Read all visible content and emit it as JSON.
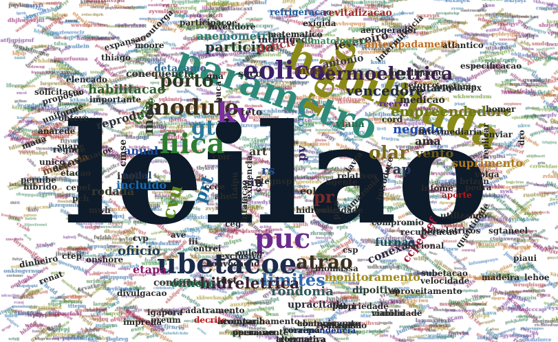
{
  "cloud": {
    "words": [
      {
        "text": "leilao",
        "color": "#0d1b2a"
      },
      {
        "text": "habilitada",
        "color": "#8a8a1a"
      },
      {
        "text": "parametro",
        "color": "#2e8b7a"
      },
      {
        "text": "revo",
        "color": "#8c8a1c"
      },
      {
        "text": "ubetacoe",
        "color": "#1c2b4a"
      },
      {
        "text": "puc",
        "color": "#6a2b8c"
      },
      {
        "text": "termoeletrica",
        "color": "#3a1f4a"
      },
      {
        "text": "fiica",
        "color": "#2e7d32"
      },
      {
        "text": "modulo",
        "color": "#3a2f1a"
      },
      {
        "text": "eolico",
        "color": "#3c1f6a"
      },
      {
        "text": "porto",
        "color": "#2b3a1f"
      },
      {
        "text": "kv",
        "color": "#7b2fa0"
      },
      {
        "text": "gt",
        "color": "#2a7a9a"
      },
      {
        "text": "limites",
        "color": "#2a6ab0"
      },
      {
        "text": "atrao",
        "color": "#3a3020"
      },
      {
        "text": "vencedore",
        "color": "#1f2a3c"
      },
      {
        "text": "olar",
        "color": "#7a6a1a"
      },
      {
        "text": "habilitacao",
        "color": "#2f5f2f"
      },
      {
        "text": "mon",
        "color": "#2f3a2a"
      },
      {
        "text": "cvu",
        "color": "#5a8a1a"
      },
      {
        "text": "pr",
        "color": "#7a2a2a"
      },
      {
        "text": "rs",
        "color": "#2a4a8a"
      },
      {
        "text": "hidreletrica",
        "color": "#3a2030"
      },
      {
        "text": "monitoramento",
        "color": "#a08a1a"
      },
      {
        "text": "rondonia",
        "color": "#2a5a5a"
      },
      {
        "text": "conexao",
        "color": "#2a2a3a"
      },
      {
        "text": "participa",
        "color": "#1f3a3a"
      },
      {
        "text": "anemometrica",
        "color": "#2a7a7a"
      },
      {
        "text": "monte",
        "color": "#5a3a2a"
      },
      {
        "text": "empreendedore",
        "color": "#6a7a1a"
      },
      {
        "text": "reproduzir",
        "color": "#2a2f3a"
      },
      {
        "text": "rap",
        "color": "#2a3a5a"
      },
      {
        "text": "negado",
        "color": "#1a4ab0"
      },
      {
        "text": "prt",
        "color": "#1a6a9a"
      },
      {
        "text": "ama",
        "color": "#2a2a2a"
      },
      {
        "text": "vento",
        "color": "#6a5a1a"
      },
      {
        "text": "suprimento",
        "color": "#b07a1a"
      },
      {
        "text": "fevereiro",
        "color": "#3a2a2a"
      },
      {
        "text": "unitario",
        "color": "#2a2a2a"
      },
      {
        "text": "antonio",
        "color": "#3a3a3a"
      },
      {
        "text": "deficit",
        "color": "#b03a3a"
      },
      {
        "text": "conequencia",
        "color": "#2a3a2a"
      },
      {
        "text": "detacamo",
        "color": "#2a6a8a"
      },
      {
        "text": "interligado",
        "color": "#2a2a3a"
      },
      {
        "text": "climatologico",
        "color": "#3a8a5a"
      },
      {
        "text": "refrigeracao",
        "color": "#1a5a9a"
      },
      {
        "text": "revitalizacao",
        "color": "#a02a2a"
      },
      {
        "text": "antecipadamente",
        "color": "#c06a1a"
      },
      {
        "text": "ofiicio",
        "color": "#1a3a5a"
      },
      {
        "text": "etapa",
        "color": "#8a1a6a"
      },
      {
        "text": "offhore",
        "color": "#1a6a4a"
      },
      {
        "text": "confiante",
        "color": "#3a3a3a"
      },
      {
        "text": "tust",
        "color": "#2a2a2a"
      },
      {
        "text": "upracitado",
        "color": "#2a2a3a"
      },
      {
        "text": "dipoitivo",
        "color": "#2a3a2a"
      },
      {
        "text": "furnas",
        "color": "#1a4a6a"
      },
      {
        "text": "ccpectef",
        "color": "#a01a3a"
      },
      {
        "text": "anual",
        "color": "#1a4aa0"
      },
      {
        "text": "nodal",
        "color": "#1a3a6a"
      },
      {
        "text": "incluido",
        "color": "#1a6ab0"
      },
      {
        "text": "rodada",
        "color": "#3a3a2a"
      },
      {
        "text": "memoria",
        "color": "#6a4a2a"
      },
      {
        "text": "cmse",
        "color": "#2a2a2a"
      },
      {
        "text": "ingle",
        "color": "#2a2a2a"
      },
      {
        "text": "sin",
        "color": "#3a2a6a"
      },
      {
        "text": "art",
        "color": "#3a3a2a"
      },
      {
        "text": "eol",
        "color": "#2a2a2a"
      },
      {
        "text": "pv",
        "color": "#3a2a6a"
      },
      {
        "text": "cmo",
        "color": "#2a8aa0"
      },
      {
        "text": "viana",
        "color": "#2a6a4a"
      },
      {
        "text": "reerva",
        "color": "#6a2a8a"
      },
      {
        "text": "medicao",
        "color": "#2a2a2a"
      },
      {
        "text": "pdeapx",
        "color": "#2a2a2a"
      },
      {
        "text": "homer",
        "color": "#2a2a2a"
      },
      {
        "text": "enviar",
        "color": "#2a2a2a"
      },
      {
        "text": "teto",
        "color": "#3a2a2a"
      },
      {
        "text": "seco",
        "color": "#2a2a2a"
      },
      {
        "text": "torre",
        "color": "#3a7a3a"
      },
      {
        "text": "mmbtu",
        "color": "#5a5a5a"
      },
      {
        "text": "propriedade",
        "color": "#2a2a2a"
      },
      {
        "text": "comprovacao",
        "color": "#2a2a2a"
      },
      {
        "text": "inventario",
        "color": "#2a2a2a"
      },
      {
        "text": "correpondencia",
        "color": "#1a3a8a"
      },
      {
        "text": "paraguai",
        "color": "#2a2a2a"
      },
      {
        "text": "permanente",
        "color": "#2a2a2a"
      },
      {
        "text": "tronqueira",
        "color": "#2a2a3a"
      },
      {
        "text": "decrito",
        "color": "#c01a1a"
      },
      {
        "text": "igapora",
        "color": "#2a2a2a"
      },
      {
        "text": "cadatramento",
        "color": "#2a2a2a"
      },
      {
        "text": "preum",
        "color": "#2a2a2a"
      },
      {
        "text": "imprena",
        "color": "#2a2a2a"
      },
      {
        "text": "divulgacao",
        "color": "#2a2a2a"
      },
      {
        "text": "subetacao",
        "color": "#2a2a2a"
      },
      {
        "text": "madeira",
        "color": "#2a2a2a"
      },
      {
        "text": "velocidade",
        "color": "#2a2a2a"
      },
      {
        "text": "quantidade",
        "color": "#2a2a2a"
      },
      {
        "text": "nacional",
        "color": "#2a2a2a"
      },
      {
        "text": "aproveitamento",
        "color": "#2a2a2a"
      },
      {
        "text": "recuperacao",
        "color": "#2a2a2a"
      },
      {
        "text": "hidreletricos",
        "color": "#2a2a2a"
      },
      {
        "text": "utilizando",
        "color": "#2a2a2a"
      },
      {
        "text": "aporte",
        "color": "#b01a1a"
      },
      {
        "text": "pedra",
        "color": "#2a2a2a"
      },
      {
        "text": "brizon",
        "color": "#2a2a2a"
      },
      {
        "text": "volga",
        "color": "#2a2a2a"
      },
      {
        "text": "infome",
        "color": "#2a2a2a"
      },
      {
        "text": "replicar",
        "color": "#2a2a2a"
      },
      {
        "text": "compromio",
        "color": "#2a2a2a"
      },
      {
        "text": "introduce",
        "color": "#2a2a2a"
      },
      {
        "text": "agente",
        "color": "#2a2a2a"
      },
      {
        "text": "relativos",
        "color": "#2a2a2a"
      },
      {
        "text": "lavra",
        "color": "#2a2a2a"
      },
      {
        "text": "pne",
        "color": "#2a2a2a"
      },
      {
        "text": "pico",
        "color": "#2a2a2a"
      },
      {
        "text": "csp",
        "color": "#2a2a2a"
      },
      {
        "text": "entrei",
        "color": "#2a2a2a"
      },
      {
        "text": "exclusivo",
        "color": "#2a2a2a"
      },
      {
        "text": "oulen",
        "color": "#2a2a2a"
      },
      {
        "text": "ave",
        "color": "#2a2a2a"
      },
      {
        "text": "cvp",
        "color": "#2a2a2a"
      },
      {
        "text": "mwh",
        "color": "#2a2a2a"
      },
      {
        "text": "pch",
        "color": "#2a2a2a"
      },
      {
        "text": "cepel",
        "color": "#2a2a2a"
      },
      {
        "text": "etacao",
        "color": "#2a2a2a"
      },
      {
        "text": "unico",
        "color": "#2a2a2a"
      },
      {
        "text": "peruibe",
        "color": "#2a2a2a"
      },
      {
        "text": "hibrido",
        "color": "#2a2a2a"
      },
      {
        "text": "determinacoe",
        "color": "#2a2a2a"
      },
      {
        "text": "regime",
        "color": "#2a2a2a"
      },
      {
        "text": "anarede",
        "color": "#2a2a2a"
      },
      {
        "text": "suape",
        "color": "#2a2a2a"
      },
      {
        "text": "uniforme",
        "color": "#2a2a2a"
      },
      {
        "text": "obteve",
        "color": "#2a2a2a"
      },
      {
        "text": "proposta",
        "color": "#2a2a2a"
      },
      {
        "text": "importante",
        "color": "#2a2a2a"
      },
      {
        "text": "elencado",
        "color": "#2a2a2a"
      },
      {
        "text": "thiago",
        "color": "#2a2a2a"
      },
      {
        "text": "expansao",
        "color": "#2a2a2a"
      },
      {
        "text": "moore",
        "color": "#2a2a2a"
      },
      {
        "text": "outorga",
        "color": "#2a2a2a"
      },
      {
        "text": "participacoe",
        "color": "#2a2a2a"
      },
      {
        "text": "invetidore",
        "color": "#2a2a2a"
      },
      {
        "text": "matematico",
        "color": "#2a2a2a"
      },
      {
        "text": "exigida",
        "color": "#2a2a2a"
      },
      {
        "text": "aerogerador",
        "color": "#2a2a2a"
      },
      {
        "text": "intermitencia",
        "color": "#2a2a2a"
      },
      {
        "text": "interligacao",
        "color": "#2a2a2a"
      },
      {
        "text": "imetame",
        "color": "#2a2a2a"
      },
      {
        "text": "especificacao",
        "color": "#2a2a2a"
      },
      {
        "text": "reforco",
        "color": "#2a2a2a"
      },
      {
        "text": "intermediaria",
        "color": "#2a2a2a"
      },
      {
        "text": "intalacao",
        "color": "#2a2a2a"
      },
      {
        "text": "exigencia",
        "color": "#2a2a2a"
      },
      {
        "text": "itaipu",
        "color": "#2a2a2a"
      },
      {
        "text": "utegnsp",
        "color": "#2a2a2a"
      },
      {
        "text": "cmr",
        "color": "#2a2a2a"
      },
      {
        "text": "ccee",
        "color": "#2a2a2a"
      },
      {
        "text": "ahe",
        "color": "#2a2a2a"
      },
      {
        "text": "ceg",
        "color": "#2a2a2a"
      },
      {
        "text": "cgh",
        "color": "#2a2a2a"
      },
      {
        "text": "buca",
        "color": "#2a2a2a"
      },
      {
        "text": "gna",
        "color": "#2a2a2a"
      },
      {
        "text": "iii",
        "color": "#2a2a2a"
      },
      {
        "text": "ctep",
        "color": "#2a2a2a"
      },
      {
        "text": "renat",
        "color": "#2a2a2a"
      },
      {
        "text": "dinheiro",
        "color": "#2a2a2a"
      },
      {
        "text": "cord",
        "color": "#2a2a2a"
      },
      {
        "text": "atlantico",
        "color": "#2a2a2a"
      },
      {
        "text": "sgtaneel",
        "color": "#2a2a2a"
      },
      {
        "text": "hidraulicidade",
        "color": "#2a2a2a"
      },
      {
        "text": "biomassa",
        "color": "#2a2a2a"
      },
      {
        "text": "maua",
        "color": "#2a2a2a"
      },
      {
        "text": "onshore",
        "color": "#2a2a2a"
      },
      {
        "text": "convocacao",
        "color": "#2a2a2a"
      },
      {
        "text": "amazonia",
        "color": "#2a2a2a"
      },
      {
        "text": "solicitacao",
        "color": "#2a2a2a"
      },
      {
        "text": "piaui",
        "color": "#2a2a2a"
      },
      {
        "text": "lehoe",
        "color": "#2a2a2a"
      },
      {
        "text": "dro",
        "color": "#2a2a2a"
      },
      {
        "text": "viabilidade",
        "color": "#2a2a2a"
      },
      {
        "text": "barri",
        "color": "#2a2a2a"
      },
      {
        "text": "abatecimento",
        "color": "#2a2a2a"
      },
      {
        "text": "acompanhamento",
        "color": "#2a2a2a"
      },
      {
        "text": "roraima",
        "color": "#2a2a2a"
      },
      {
        "text": "conclusao",
        "color": "#2a2a2a"
      },
      {
        "text": "operacao",
        "color": "#2a2a2a"
      },
      {
        "text": "alternativa",
        "color": "#2a2a2a"
      }
    ]
  }
}
